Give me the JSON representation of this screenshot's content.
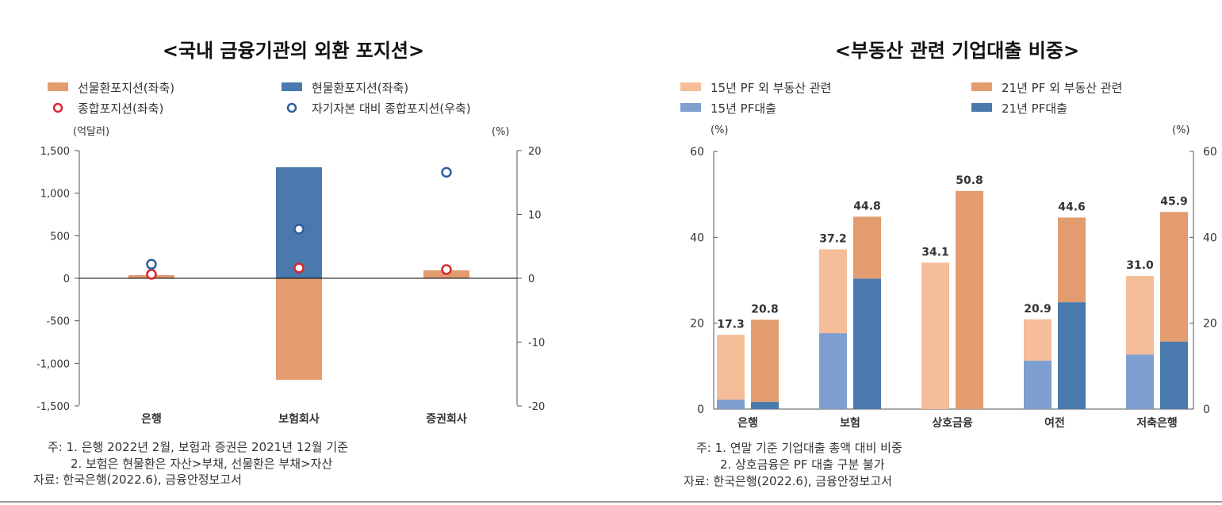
{
  "colors": {
    "futures": "#e29c70",
    "spot": "#4a79ad",
    "pf15": "#f5bd98",
    "pf21": "#e29c70",
    "pfloan15": "#7e9fcf",
    "pfloan21": "#4a79ad",
    "combined": "#d9262f",
    "ratio": "#2f5f9e"
  },
  "chart_data": [
    {
      "type": "bar",
      "title": "<국내 금융기관의 외환 포지션>",
      "unit_left": "(억달러)",
      "unit_right": "(%)",
      "categories": [
        "은행",
        "보험회사",
        "증권회사"
      ],
      "ylim": [
        -1500,
        1500
      ],
      "yticks": [
        "-1,500",
        "-1,000",
        "-500",
        "0",
        "500",
        "1,000",
        "1,500"
      ],
      "yticks_values": [
        -1500,
        -1000,
        -500,
        0,
        500,
        1000,
        1500
      ],
      "y2lim": [
        -20,
        20
      ],
      "y2ticks": [
        -20,
        -10,
        0,
        10,
        20
      ],
      "series": [
        {
          "name": "선물환포지션(좌축)",
          "kind": "bar",
          "values": [
            37,
            -1193,
            93
          ]
        },
        {
          "name": "현물환포지션(좌축)",
          "kind": "bar",
          "values": [
            0,
            1305,
            0
          ]
        },
        {
          "name": "종합포지션(좌축)",
          "kind": "marker",
          "values": [
            47,
            121,
            102
          ]
        },
        {
          "name": "자기자본 대비 종합포지션(우축)",
          "kind": "marker",
          "axis": "right",
          "values": [
            2.2,
            7.7,
            16.6
          ]
        }
      ],
      "notes": [
        "주: 1. 은행 2022년 2월, 보험과 증권은 2021년 12월 기준",
        "2. 보험은 현물환은 자산>부채, 선물환은 부채>자산",
        "자료: 한국은행(2022.6), 금융안정보고서"
      ]
    },
    {
      "type": "bar",
      "title": "<부동산 관련 기업대출 비중>",
      "unit_left": "(%)",
      "unit_right": "(%)",
      "categories": [
        "은행",
        "보험",
        "상호금융",
        "여전",
        "저축은행"
      ],
      "ylim": [
        0,
        60
      ],
      "yticks": [
        0,
        20,
        40,
        60
      ],
      "series": [
        {
          "name": "15년 PF대출",
          "values": [
            2.2,
            17.7,
            0,
            11.3,
            12.7
          ]
        },
        {
          "name": "15년 PF 외 부동산 관련",
          "values": [
            15.1,
            19.5,
            34.1,
            9.6,
            18.3
          ]
        },
        {
          "name": "21년 PF대출",
          "values": [
            1.7,
            30.4,
            0,
            24.9,
            15.7
          ]
        },
        {
          "name": "21년 PF 외 부동산 관련",
          "values": [
            19.1,
            14.4,
            50.8,
            19.7,
            30.2
          ]
        }
      ],
      "totals_15": [
        "17.3",
        "37.2",
        "34.1",
        "20.9",
        "31.0"
      ],
      "totals_21": [
        "20.8",
        "44.8",
        "50.8",
        "44.6",
        "45.9"
      ],
      "notes": [
        "주: 1. 연말 기준 기업대출 총액 대비 비중",
        "2. 상호금융은 PF 대출 구분 불가",
        "자료: 한국은행(2022.6), 금융안정보고서"
      ]
    }
  ]
}
